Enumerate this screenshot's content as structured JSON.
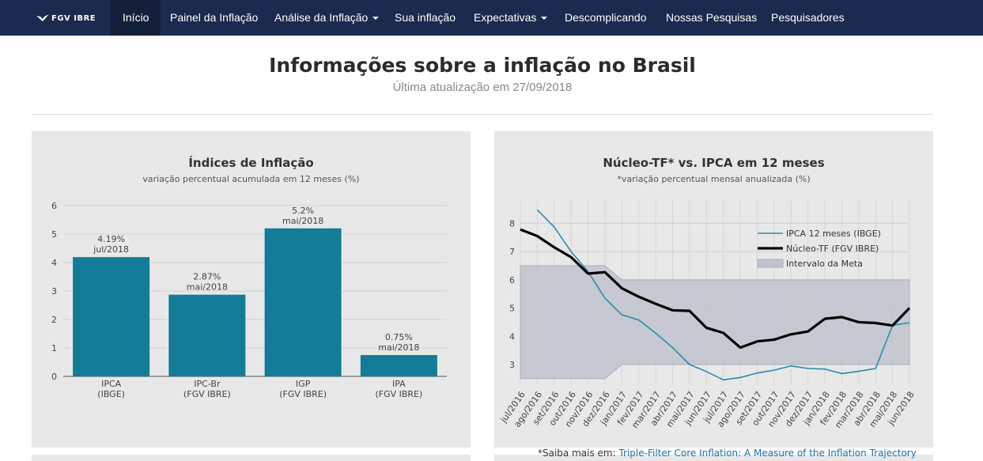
{
  "nav": {
    "logo_text": "FGV IBRE",
    "items": [
      {
        "label": "Início",
        "active": true
      },
      {
        "label": "Painel da Inflação"
      },
      {
        "label": "Análise da Inflação"
      },
      {
        "label": "Sua inflação"
      },
      {
        "label": "Expectativas"
      },
      {
        "label": "Descomplicando"
      },
      {
        "label": "Nossas Pesquisas"
      },
      {
        "label": "Pesquisadores"
      }
    ]
  },
  "header": {
    "title": "Informações sobre a inflação no Brasil",
    "subtitle": "Última atualização em 27/09/2018"
  },
  "colors": {
    "nav_bg": "#1b2a4e",
    "bar": "#137c98",
    "ipca_line": "#2a8cab",
    "nucleo_line": "#000000",
    "meta_band": "#bfc3cc",
    "panel_bg": "#e8e8e8"
  },
  "chart_data": [
    {
      "type": "bar",
      "title": "Índices de Inflação",
      "subtitle": "variação percentual acumulada em 12 meses (%)",
      "categories": [
        "IPCA",
        "IPC-Br",
        "IGP",
        "IPA"
      ],
      "category_sublabels": [
        "(IBGE)",
        "(FGV IBRE)",
        "(FGV IBRE)",
        "(FGV IBRE)"
      ],
      "values": [
        4.19,
        2.87,
        5.2,
        0.75
      ],
      "value_labels": [
        "4.19%",
        "2.87%",
        "5.2%",
        "0.75%"
      ],
      "date_labels": [
        "jul/2018",
        "mai/2018",
        "mai/2018",
        "mai/2018"
      ],
      "ylim": [
        0,
        6
      ],
      "yticks": [
        "0",
        "1",
        "2",
        "3",
        "4",
        "5",
        "6"
      ],
      "grid": true
    },
    {
      "type": "line",
      "title": "Núcleo-TF* vs. IPCA em 12 meses",
      "subtitle": "*variação percentual mensal anualizada (%)",
      "x": [
        "jul/2016",
        "ago/2016",
        "set/2016",
        "out/2016",
        "nov/2016",
        "dez/2016",
        "jan/2017",
        "fev/2017",
        "mar/2017",
        "abr/2017",
        "mai/2017",
        "jun/2017",
        "jul/2017",
        "ago/2017",
        "set/2017",
        "out/2017",
        "nov/2017",
        "dez/2017",
        "jan/2018",
        "fev/2018",
        "mar/2018",
        "abr/2018",
        "mai/2018",
        "jun/2018"
      ],
      "ylim": [
        2.3,
        8.6
      ],
      "yticks": [
        "3",
        "4",
        "5",
        "6",
        "7",
        "8"
      ],
      "legend": [
        "IPCA 12 meses (IBGE)",
        "Núcleo-TF (FGV IBRE)",
        "Intervalo da Meta"
      ],
      "legend_position": "top-right",
      "series": [
        {
          "name": "IPCA 12 meses (IBGE)",
          "values": [
            null,
            8.48,
            7.87,
            7.0,
            6.29,
            5.35,
            4.76,
            4.58,
            4.11,
            3.6,
            3.0,
            2.75,
            2.46,
            2.54,
            2.7,
            2.8,
            2.95,
            2.86,
            2.84,
            2.68,
            2.76,
            2.86,
            4.39,
            4.48
          ]
        },
        {
          "name": "Núcleo-TF (FGV IBRE)",
          "values": [
            7.78,
            7.55,
            7.15,
            6.8,
            6.22,
            6.27,
            5.7,
            5.4,
            5.15,
            4.92,
            4.9,
            4.3,
            4.12,
            3.6,
            3.82,
            3.88,
            4.07,
            4.17,
            4.62,
            4.68,
            4.5,
            4.47,
            4.38,
            5.0
          ]
        },
        {
          "name": "Intervalo da Meta",
          "lower": [
            2.5,
            2.5,
            2.5,
            2.5,
            2.5,
            2.5,
            3.0,
            3.0,
            3.0,
            3.0,
            3.0,
            3.0,
            3.0,
            3.0,
            3.0,
            3.0,
            3.0,
            3.0,
            3.0,
            3.0,
            3.0,
            3.0,
            3.0,
            3.0
          ],
          "upper": [
            6.5,
            6.5,
            6.5,
            6.5,
            6.5,
            6.5,
            6.0,
            6.0,
            6.0,
            6.0,
            6.0,
            6.0,
            6.0,
            6.0,
            6.0,
            6.0,
            6.0,
            6.0,
            6.0,
            6.0,
            6.0,
            6.0,
            6.0,
            6.0
          ]
        }
      ]
    }
  ],
  "footnote": {
    "prefix": "*Saiba mais em: ",
    "link_text": "Triple-Filter Core Inflation: A Measure of the Inflation Trajectory"
  }
}
